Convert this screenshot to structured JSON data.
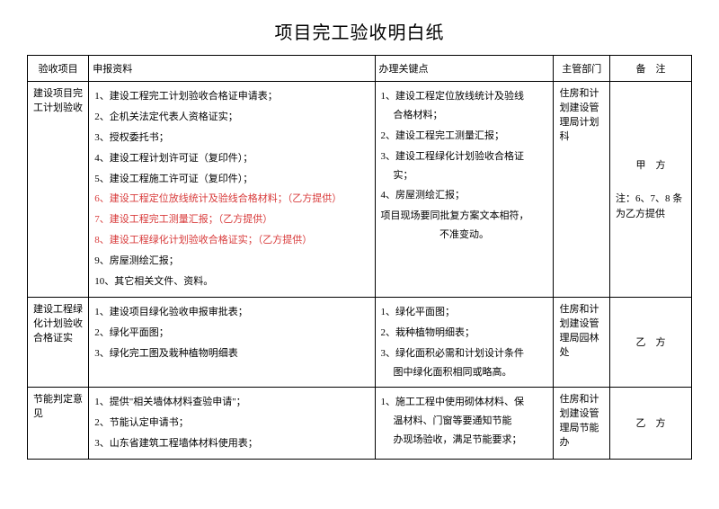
{
  "title": "项目完工验收明白纸",
  "headers": {
    "col1": "验收项目",
    "col2": "申报资料",
    "col3": "办理关键点",
    "col4": "主管部门",
    "col5": "备　注"
  },
  "rows": [
    {
      "project": "建设项目完工计划验收",
      "materials": [
        {
          "text": "1、建设工程完工计划验收合格证申请表；",
          "red": false
        },
        {
          "text": "2、企机关法定代表人资格证实；",
          "red": false
        },
        {
          "text": "3、授权委托书；",
          "red": false
        },
        {
          "text": "4、建设工程计划许可证（复印件）；",
          "red": false
        },
        {
          "text": "5、建设工程施工许可证（复印件）；",
          "red": false
        },
        {
          "text": "6、建设工程定位放线统计及验线合格材料；（乙方提供）",
          "red": true
        },
        {
          "text": "7、建设工程完工测量汇报；（乙方提供）",
          "red": true
        },
        {
          "text": "8、建设工程绿化计划验收合格证实；（乙方提供）",
          "red": true
        },
        {
          "text": "9、房屋测绘汇报；",
          "red": false
        },
        {
          "text": "10、其它相关文件、资料。",
          "red": false
        }
      ],
      "keypoints": [
        "1、建设工程定位放线统计及验线合格材料；",
        "2、建设工程完工测量汇报；",
        "3、建设工程绿化计划验收合格证实；",
        "4、房屋测绘汇报；",
        "项目现场要同批复方案文本相符，不准变动。"
      ],
      "dept": "住房和计划建设管理局计划科",
      "remark_top": "甲　方",
      "remark_bottom": "注：6、7、8 条为乙方提供"
    },
    {
      "project": "建设工程绿化计划验收合格证实",
      "materials": [
        {
          "text": "1、建设项目绿化验收申报审批表；",
          "red": false
        },
        {
          "text": "2、绿化平面图；",
          "red": false
        },
        {
          "text": "3、绿化完工图及栽种植物明细表",
          "red": false
        }
      ],
      "keypoints": [
        "1、绿化平面图；",
        "2、栽种植物明细表；",
        "3、绿化面积必需和计划设计条件图中绿化面积相同或略高。"
      ],
      "dept": "住房和计划建设管理局园林处",
      "remark": "乙　方"
    },
    {
      "project": "节能判定意见",
      "materials": [
        {
          "text": "1、提供\"相关墙体材料查验申请\"；",
          "red": false
        },
        {
          "text": "2、节能认定申请书；",
          "red": false
        },
        {
          "text": "3、山东省建筑工程墙体材料使用表；",
          "red": false
        }
      ],
      "keypoints": [
        "1、施工工程中使用砌体材料、保温材料、门窗等要通知节能办现场验收，满足节能要求；"
      ],
      "dept": "住房和计划建设管理局节能办",
      "remark": "乙　方"
    }
  ]
}
